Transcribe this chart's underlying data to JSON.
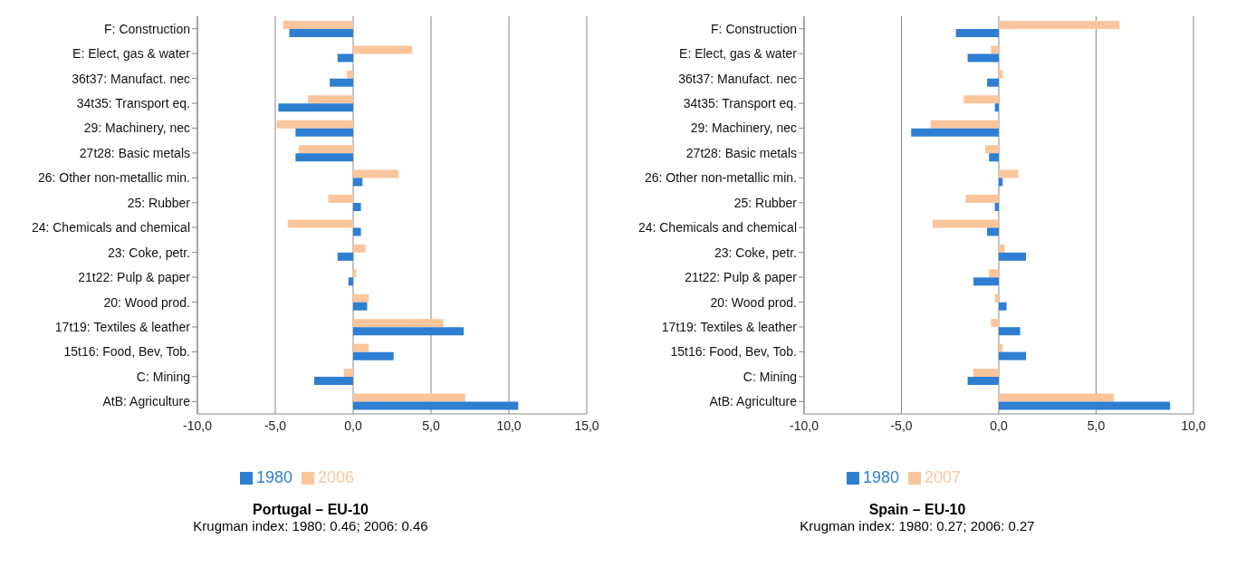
{
  "chart_data": [
    {
      "type": "bar",
      "orientation": "horizontal",
      "title": "Portugal – EU-10",
      "subtitle": "Krugman index: 1980: 0.46; 2006: 0.46",
      "categories": [
        "F: Construction",
        "E: Elect, gas & water",
        "36t37: Manufact. nec",
        "34t35: Transport eq.",
        "29: Machinery, nec",
        "27t28: Basic metals",
        "26: Other non-metallic min.",
        "25: Rubber",
        "24: Chemicals and chemical",
        "23: Coke, petr.",
        "21t22: Pulp & paper",
        "20: Wood prod.",
        "17t19: Textiles & leather",
        "15t16: Food, Bev, Tob.",
        "C: Mining",
        "AtB: Agriculture"
      ],
      "series": [
        {
          "name": "2006",
          "color": "#fbc59c",
          "values": [
            -4.5,
            3.8,
            -0.4,
            -2.9,
            -4.9,
            -3.5,
            2.9,
            -1.6,
            -4.2,
            0.8,
            0.2,
            1.0,
            5.8,
            1.0,
            -0.6,
            7.2
          ]
        },
        {
          "name": "1980",
          "color": "#2e7fd1",
          "values": [
            -4.1,
            -1.0,
            -1.5,
            -4.8,
            -3.7,
            -3.7,
            0.6,
            0.5,
            0.5,
            -1.0,
            -0.3,
            0.9,
            7.1,
            2.6,
            -2.5,
            10.6
          ]
        }
      ],
      "xlim": [
        -10,
        15
      ],
      "xticks": [
        {
          "value": -10,
          "label": "-10,0"
        },
        {
          "value": -5,
          "label": "-5,0"
        },
        {
          "value": 0,
          "label": "0,0"
        },
        {
          "value": 5,
          "label": "5,0"
        },
        {
          "value": 10,
          "label": "10,0"
        },
        {
          "value": 15,
          "label": "15,0"
        }
      ],
      "grid": "x",
      "legend": "bottom"
    },
    {
      "type": "bar",
      "orientation": "horizontal",
      "title": "Spain – EU-10",
      "subtitle": "Krugman index: 1980: 0.27; 2006: 0.27",
      "categories": [
        "F: Construction",
        "E: Elect, gas & water",
        "36t37: Manufact. nec",
        "34t35: Transport eq.",
        "29: Machinery, nec",
        "27t28: Basic metals",
        "26: Other non-metallic min.",
        "25: Rubber",
        "24: Chemicals and chemical",
        "23: Coke, petr.",
        "21t22: Pulp & paper",
        "20: Wood prod.",
        "17t19: Textiles & leather",
        "15t16: Food, Bev, Tob.",
        "C: Mining",
        "AtB: Agriculture"
      ],
      "series": [
        {
          "name": "2007",
          "color": "#fbc59c",
          "values": [
            6.2,
            -0.4,
            0.2,
            -1.8,
            -3.5,
            -0.7,
            1.0,
            -1.7,
            -3.4,
            0.3,
            -0.5,
            -0.2,
            -0.4,
            0.2,
            -1.3,
            5.9
          ]
        },
        {
          "name": "1980",
          "color": "#2e7fd1",
          "values": [
            -2.2,
            -1.6,
            -0.6,
            -0.2,
            -4.5,
            -0.5,
            0.2,
            -0.2,
            -0.6,
            1.4,
            -1.3,
            0.4,
            1.1,
            1.4,
            -1.6,
            8.8
          ]
        }
      ],
      "xlim": [
        -10,
        10
      ],
      "xticks": [
        {
          "value": -10,
          "label": "-10,0"
        },
        {
          "value": -5,
          "label": "-5,0"
        },
        {
          "value": 0,
          "label": "0,0"
        },
        {
          "value": 5,
          "label": "5,0"
        },
        {
          "value": 10,
          "label": "10,0"
        }
      ],
      "grid": "x",
      "legend": "bottom"
    }
  ]
}
